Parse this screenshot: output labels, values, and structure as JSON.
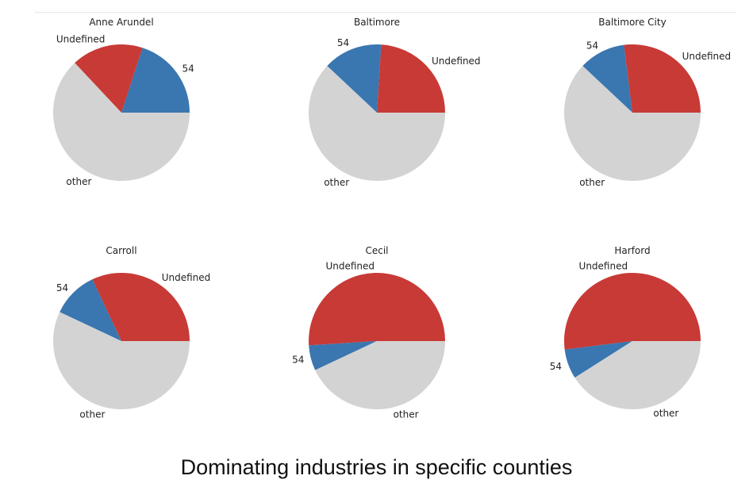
{
  "caption": "Dominating industries in specific counties",
  "colors": {
    "Undefined": "#c83a36",
    "54": "#3a76b0",
    "other": "#d3d3d3"
  },
  "chart_data": [
    {
      "type": "pie",
      "title": "Anne Arundel",
      "slices": [
        {
          "label": "54",
          "value": 0.2
        },
        {
          "label": "Undefined",
          "value": 0.17
        },
        {
          "label": "other",
          "value": 0.63
        }
      ]
    },
    {
      "type": "pie",
      "title": "Baltimore",
      "slices": [
        {
          "label": "Undefined",
          "value": 0.24
        },
        {
          "label": "54",
          "value": 0.14
        },
        {
          "label": "other",
          "value": 0.62
        }
      ]
    },
    {
      "type": "pie",
      "title": "Baltimore City",
      "slices": [
        {
          "label": "Undefined",
          "value": 0.27
        },
        {
          "label": "54",
          "value": 0.11
        },
        {
          "label": "other",
          "value": 0.62
        }
      ]
    },
    {
      "type": "pie",
      "title": "Carroll",
      "slices": [
        {
          "label": "Undefined",
          "value": 0.32
        },
        {
          "label": "54",
          "value": 0.11
        },
        {
          "label": "other",
          "value": 0.57
        }
      ]
    },
    {
      "type": "pie",
      "title": "Cecil",
      "slices": [
        {
          "label": "Undefined",
          "value": 0.51
        },
        {
          "label": "54",
          "value": 0.06
        },
        {
          "label": "other",
          "value": 0.43
        }
      ]
    },
    {
      "type": "pie",
      "title": "Harford",
      "slices": [
        {
          "label": "Undefined",
          "value": 0.52
        },
        {
          "label": "54",
          "value": 0.07
        },
        {
          "label": "other",
          "value": 0.41
        }
      ]
    }
  ]
}
